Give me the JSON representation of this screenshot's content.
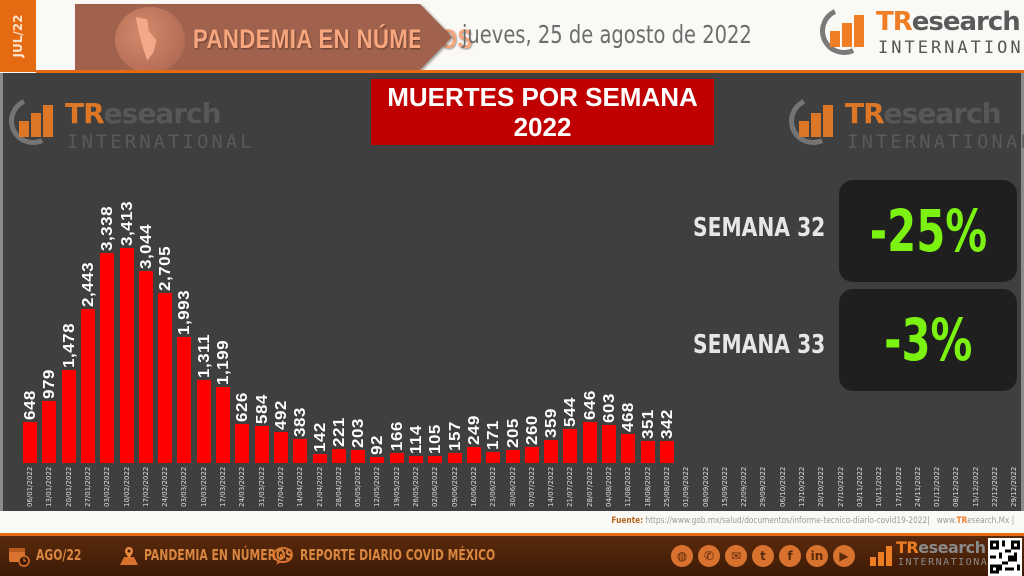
{
  "header": {
    "month_tab": "JUL/22",
    "banner_title": "PANDEMIA EN NÚMEROS",
    "date": "jueves,  25 de agosto  de 2022",
    "logo": {
      "tr": "TR",
      "rest": "esearch",
      "sub": "INTERNATIONAL"
    }
  },
  "panel": {
    "title_line1": "MUERTES POR SEMANA",
    "title_line2": "2022",
    "watermark": {
      "tr": "TR",
      "rest": "esearch",
      "sub": "INTERNATIONAL"
    },
    "comparisons": [
      {
        "label": "SEMANA 32",
        "value": "-25%"
      },
      {
        "label": "SEMANA 33",
        "value": "-3%"
      }
    ]
  },
  "chart_data": {
    "type": "bar",
    "title": "MUERTES POR SEMANA 2022",
    "xlabel": "",
    "ylabel": "",
    "bar_color": "#ff0000",
    "grid": false,
    "legend": null,
    "categories": [
      "06/01/2022",
      "13/01/2022",
      "20/01/2022",
      "27/01/2022",
      "03/02/2022",
      "10/02/2022",
      "17/02/2022",
      "24/02/2022",
      "03/03/2022",
      "10/03/2022",
      "17/03/2022",
      "24/03/2022",
      "31/03/2022",
      "07/04/2022",
      "14/04/2022",
      "21/04/2022",
      "28/04/2022",
      "05/05/2022",
      "12/05/2022",
      "19/05/2022",
      "26/05/2022",
      "02/06/2022",
      "09/06/2022",
      "16/06/2022",
      "23/06/2022",
      "30/06/2022",
      "07/07/2022",
      "14/07/2022",
      "21/07/2022",
      "28/07/2022",
      "04/08/2022",
      "11/08/2022",
      "18/08/2022",
      "25/08/2022",
      "01/09/2022",
      "08/09/2022",
      "15/09/2022",
      "22/09/2022",
      "29/09/2022",
      "06/10/2022",
      "13/10/2022",
      "20/10/2022",
      "27/10/2022",
      "03/11/2022",
      "10/11/2022",
      "17/11/2022",
      "24/11/2022",
      "01/12/2022",
      "08/12/2022",
      "15/12/2022",
      "22/12/2022",
      "29/12/2022"
    ],
    "values": [
      648,
      979,
      1478,
      2443,
      3338,
      3413,
      3044,
      2705,
      1993,
      1311,
      1199,
      626,
      584,
      492,
      383,
      142,
      221,
      203,
      92,
      166,
      114,
      105,
      157,
      249,
      171,
      205,
      260,
      359,
      544,
      646,
      603,
      468,
      351,
      342,
      null,
      null,
      null,
      null,
      null,
      null,
      null,
      null,
      null,
      null,
      null,
      null,
      null,
      null,
      null,
      null,
      null,
      null
    ],
    "value_labels": [
      "648",
      "979",
      "1,478",
      "2,443",
      "3,338",
      "3,413",
      "3,044",
      "2,705",
      "1,993",
      "1,311",
      "1,199",
      "626",
      "584",
      "492",
      "383",
      "142",
      "221",
      "203",
      "92",
      "166",
      "114",
      "105",
      "157",
      "249",
      "171",
      "205",
      "260",
      "359",
      "544",
      "646",
      "603",
      "468",
      "351",
      "342"
    ],
    "ylim": [
      0,
      3500
    ]
  },
  "source": {
    "label": "Fuente:",
    "url": "https://www.gob.mx/salud/documentos/informe-tecnico-diario-covid19-2022",
    "site_prefix": "www.",
    "site_tr": "TR",
    "site_rest": "esearch.Mx",
    "sep": "|"
  },
  "footer": {
    "month": "AGO/22",
    "section": "PANDEMIA  EN  NÚMEROS",
    "report": "REPORTE  DIARIO  COVID  MÉXICO",
    "social_icons": [
      "globe-icon",
      "whatsapp-icon",
      "email-icon",
      "twitter-icon",
      "facebook-icon",
      "linkedin-icon",
      "youtube-icon"
    ],
    "social_glyphs": [
      "◍",
      "✆",
      "✉",
      "t",
      "f",
      "in",
      "▶"
    ],
    "logo": {
      "tr": "TR",
      "rest": "esearch",
      "sub": "INTERNATIONAL"
    }
  }
}
